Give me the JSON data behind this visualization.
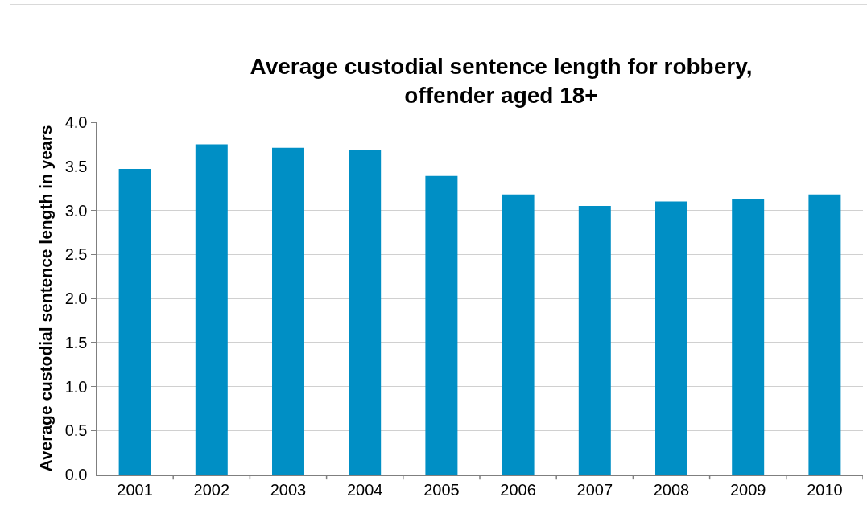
{
  "chart_data": {
    "type": "bar",
    "title": "Average custodial sentence length for robbery,\noffender aged 18+",
    "ylabel": "Average custodial sentence length in years",
    "categories": [
      "2001",
      "2002",
      "2003",
      "2004",
      "2005",
      "2006",
      "2007",
      "2008",
      "2009",
      "2010"
    ],
    "values": [
      3.47,
      3.75,
      3.71,
      3.68,
      3.39,
      3.18,
      3.05,
      3.1,
      3.13,
      3.18
    ],
    "color": "#008fc5",
    "ylim": [
      0,
      4
    ],
    "yticks": [
      {
        "value": 0,
        "label": "0.0"
      },
      0.5,
      {
        "value": 1,
        "label": "1.0"
      },
      1.5,
      {
        "value": 2,
        "label": "2.0"
      },
      2.5,
      {
        "value": 3,
        "label": "3.0"
      },
      3.5,
      {
        "value": 4,
        "label": "4.0"
      }
    ],
    "grid": "y"
  }
}
